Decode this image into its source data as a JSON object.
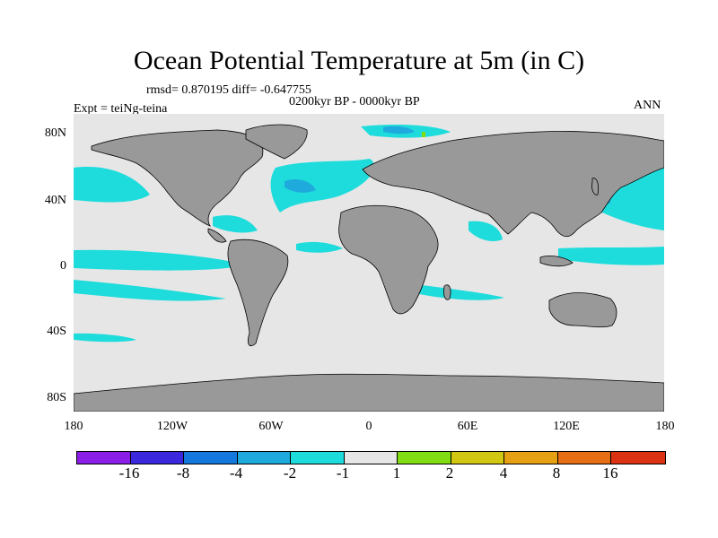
{
  "title": "Ocean Potential Temperature at 5m (in C)",
  "stats": "rmsd= 0.870195 diff= -0.647755",
  "period": "0200kyr BP - 0000kyr BP",
  "experiment": "Expt = teiNg-teina",
  "season": "ANN",
  "y_axis": {
    "ticks": [
      "80N",
      "40N",
      "0",
      "40S",
      "80S"
    ]
  },
  "x_axis": {
    "ticks": [
      "180",
      "120W",
      "60W",
      "0",
      "60E",
      "120E",
      "180"
    ]
  },
  "colorbar": {
    "colors": [
      "#8a1ee6",
      "#3c28dc",
      "#1478dc",
      "#1eaadc",
      "#1edcdc",
      "#e6e6e6",
      "#82dc14",
      "#d2c814",
      "#e6a014",
      "#e66e14",
      "#dc3214"
    ],
    "labels": [
      "-16",
      "-8",
      "-4",
      "-2",
      "-1",
      "1",
      "2",
      "4",
      "8",
      "16"
    ]
  },
  "colors": {
    "ocean": "#e6e6e6",
    "land": "#999999",
    "cool": "#1edcdc",
    "cooler": "#1eaadc",
    "coolest": "#1478dc"
  }
}
